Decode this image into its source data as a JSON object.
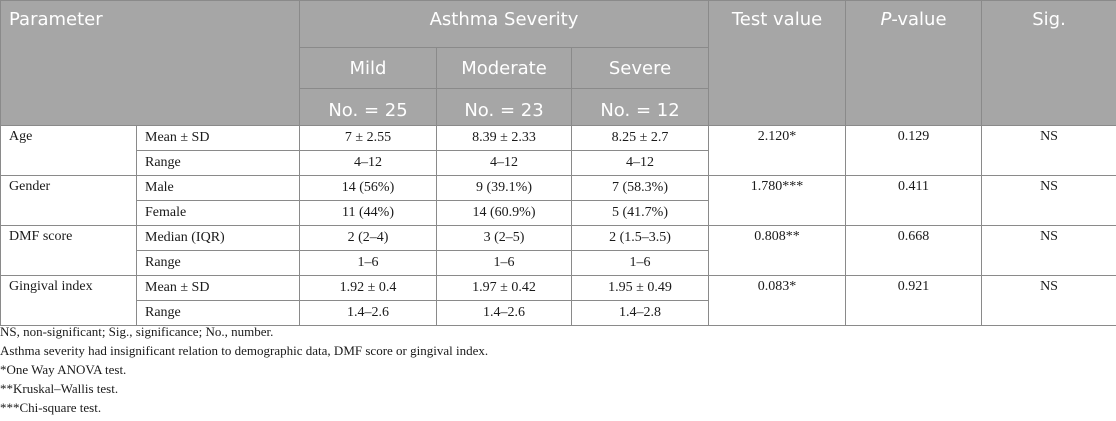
{
  "table": {
    "headers": {
      "parameter": "Parameter",
      "group": "Asthma Severity",
      "groups": [
        {
          "name": "Mild",
          "n": "No. = 25"
        },
        {
          "name": "Moderate",
          "n": "No. = 23"
        },
        {
          "name": "Severe",
          "n": "No. = 12"
        }
      ],
      "test_value": "Test value",
      "p_italic": "P",
      "p_rest": "-value",
      "sig": "Sig."
    },
    "rows": [
      {
        "param": "Age",
        "test": "2.120*",
        "p": "0.129",
        "sig": "NS",
        "stats": [
          {
            "label": "Mean ± SD",
            "values": [
              "7 ± 2.55",
              "8.39 ± 2.33",
              "8.25 ± 2.7"
            ]
          },
          {
            "label": "Range",
            "values": [
              "4–12",
              "4–12",
              "4–12"
            ]
          }
        ]
      },
      {
        "param": "Gender",
        "test": "1.780***",
        "p": "0.411",
        "sig": "NS",
        "stats": [
          {
            "label": "Male",
            "values": [
              "14 (56%)",
              "9 (39.1%)",
              "7 (58.3%)"
            ]
          },
          {
            "label": "Female",
            "values": [
              "11 (44%)",
              "14 (60.9%)",
              "5 (41.7%)"
            ]
          }
        ]
      },
      {
        "param": "DMF score",
        "test": "0.808**",
        "p": "0.668",
        "sig": "NS",
        "stats": [
          {
            "label": "Median (IQR)",
            "values": [
              "2 (2–4)",
              "3 (2–5)",
              "2 (1.5–3.5)"
            ]
          },
          {
            "label": "Range",
            "values": [
              "1–6",
              "1–6",
              "1–6"
            ]
          }
        ]
      },
      {
        "param": "Gingival index",
        "test": "0.083*",
        "p": "0.921",
        "sig": "NS",
        "stats": [
          {
            "label": "Mean ± SD",
            "values": [
              "1.92 ± 0.4",
              "1.97 ± 0.42",
              "1.95 ± 0.49"
            ]
          },
          {
            "label": "Range",
            "values": [
              "1.4–2.6",
              "1.4–2.6",
              "1.4–2.8"
            ]
          }
        ]
      }
    ]
  },
  "notes": [
    "NS, non-significant; Sig., significance; No., number.",
    "Asthma severity had insignificant relation to demographic data, DMF score or gingival index.",
    "*One Way ANOVA test.",
    "**Kruskal–Wallis test.",
    "***Chi-square test."
  ]
}
